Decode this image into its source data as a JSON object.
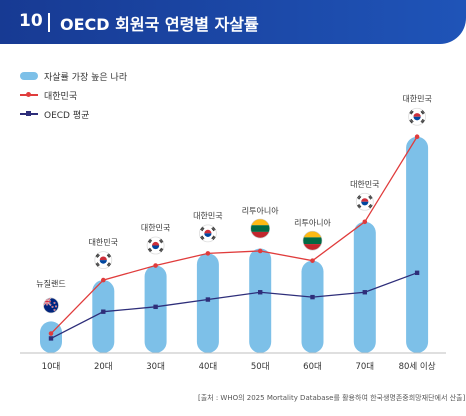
{
  "header": {
    "number": "10",
    "title": "OECD 회원국 연령별 자살률"
  },
  "legend": {
    "items": [
      {
        "label": "자살률 가장 높은 나라",
        "color": "#7dc0e8",
        "kind": "bar"
      },
      {
        "label": "대한민국",
        "color": "#e03c3c",
        "kind": "line"
      },
      {
        "label": "OECD 평균",
        "color": "#2e2e7a",
        "kind": "line"
      }
    ]
  },
  "chart_data": {
    "type": "bar",
    "categories": [
      "10대",
      "20대",
      "30대",
      "40대",
      "50대",
      "60대",
      "70대",
      "80세 이상"
    ],
    "series": [
      {
        "name": "자살률 가장 높은 나라",
        "type": "bar",
        "color": "#7dc0e8",
        "values": [
          13,
          30,
          36,
          41,
          43,
          38,
          54,
          89
        ],
        "country_labels": [
          "뉴질랜드",
          "대한민국",
          "대한민국",
          "대한민국",
          "리투아니아",
          "리투아니아",
          "대한민국",
          "대한민국"
        ],
        "country_flags": [
          "new-zealand-flag-icon",
          "south-korea-flag-icon",
          "south-korea-flag-icon",
          "south-korea-flag-icon",
          "lithuania-flag-icon",
          "lithuania-flag-icon",
          "south-korea-flag-icon",
          "south-korea-flag-icon"
        ]
      },
      {
        "name": "대한민국",
        "type": "line",
        "color": "#e03c3c",
        "values": [
          8,
          30,
          36,
          41,
          42,
          38,
          54,
          89
        ]
      },
      {
        "name": "OECD 평균",
        "type": "line",
        "color": "#2e2e7a",
        "values": [
          6,
          17,
          19,
          22,
          25,
          23,
          25,
          33
        ]
      }
    ],
    "ylim": [
      0,
      100
    ],
    "grid": false,
    "legend_position": "top-left"
  },
  "footer": {
    "source": "[출처 : WHO의 2025 Mortality Database를 활용하여 한국생명존중희망재단에서 산출]"
  }
}
